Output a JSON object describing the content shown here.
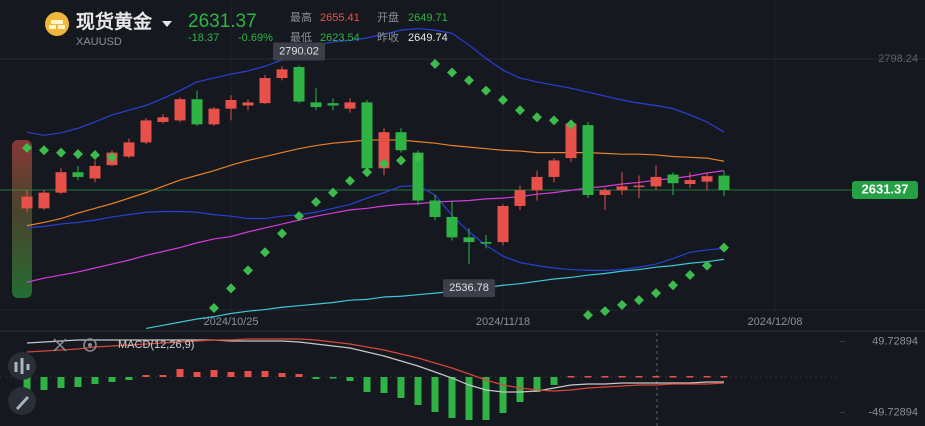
{
  "header": {
    "name": "现货黄金",
    "symbol": "XAUUSD",
    "price": "2631.37",
    "change": "-18.37",
    "change_pct": "-0.69%",
    "stats": [
      [
        "最高",
        "2655.41"
      ],
      [
        "开盘",
        "2649.71"
      ],
      [
        "最低",
        "2623.54"
      ],
      [
        "昨收",
        "2649.74"
      ]
    ]
  },
  "chart_data": [
    {
      "type": "candlestick",
      "categories": [
        null,
        null,
        null,
        null,
        null,
        null,
        null,
        null,
        null,
        null,
        null,
        null,
        "2024/10/25",
        null,
        null,
        null,
        null,
        null,
        null,
        null,
        null,
        null,
        null,
        null,
        null,
        null,
        null,
        null,
        "2024/11/18",
        null,
        null,
        null,
        null,
        null,
        null,
        null,
        null,
        null,
        null,
        null,
        null,
        null,
        null,
        null,
        "2024/12/08"
      ],
      "open": [
        2608,
        2608,
        2628,
        2654,
        2646,
        2663,
        2674,
        2692,
        2718,
        2720,
        2747,
        2715,
        2735,
        2739,
        2742,
        2774,
        2788,
        2743,
        2742,
        2735,
        2743,
        2659,
        2705,
        2679,
        2618,
        2597,
        2571,
        2565,
        2565,
        2611,
        2631,
        2648,
        2672,
        2714,
        2625,
        2631,
        2635,
        2636,
        2651,
        2639,
        2642,
        2649.71,
        null,
        null,
        null
      ],
      "high": [
        2631,
        2631,
        2659,
        2662,
        2669,
        2682,
        2697,
        2723,
        2728,
        2749,
        2758,
        2737,
        2752,
        2747,
        2778,
        2789,
        2790.02,
        2761,
        2748,
        2748,
        2746,
        2710,
        2710,
        2682,
        2625,
        2618,
        2583,
        2574,
        2613,
        2637,
        2656,
        2672,
        2720,
        2718,
        2634,
        2654,
        2650,
        2663,
        2654,
        2654,
        2654,
        2655.41,
        null,
        null,
        null
      ],
      "low": [
        2603,
        2606,
        2626,
        2644,
        2641,
        2662,
        2672,
        2690,
        2716,
        2718,
        2713,
        2713,
        2720,
        2733,
        2741,
        2771,
        2742,
        2733,
        2733,
        2730,
        2654,
        2650,
        2679,
        2612,
        2593,
        2567,
        2536.78,
        2557,
        2561,
        2606,
        2618,
        2641,
        2667,
        2621,
        2606,
        2625,
        2621,
        2631,
        2625,
        2634,
        2631,
        2623.54,
        null,
        null,
        null
      ],
      "close": [
        2623,
        2628,
        2654,
        2648,
        2662,
        2679,
        2692,
        2720,
        2724,
        2747,
        2715,
        2735,
        2746,
        2743,
        2774,
        2785,
        2744,
        2737,
        2739,
        2743,
        2659,
        2705,
        2682,
        2618,
        2597,
        2571,
        2565,
        2563,
        2611,
        2631,
        2648,
        2669,
        2716,
        2625,
        2631,
        2636,
        2637,
        2648,
        2640,
        2644,
        2649,
        2631.37,
        null,
        null,
        null
      ],
      "up_color": "#e8514a",
      "down_color": "#2fb344",
      "ylim": [
        2453,
        2873.4
      ],
      "yticks": [
        2798.24
      ],
      "current_price": 2631.37,
      "current_color": "#26a044",
      "series": [
        {
          "type": "line",
          "color": "#2a3fd6",
          "values": [
            2705,
            2701,
            2704,
            2710,
            2718,
            2727,
            2733,
            2739,
            2748,
            2758,
            2769,
            2774,
            2779,
            2783,
            2789,
            2797,
            2807,
            2816,
            2820,
            2822,
            2825,
            2830,
            2835,
            2837,
            2835,
            2831,
            2816,
            2799,
            2784,
            2774,
            2769,
            2765,
            2761,
            2756,
            2751,
            2746,
            2742,
            2739,
            2735,
            2727,
            2718,
            2705,
            null,
            null,
            null
          ]
        },
        {
          "type": "line",
          "color": "#e8822a",
          "values": [
            2586,
            2590,
            2595,
            2602,
            2608,
            2614,
            2621,
            2628,
            2636,
            2644,
            2650,
            2656,
            2663,
            2669,
            2674,
            2679,
            2684,
            2688,
            2691,
            2693,
            2695,
            2695,
            2695,
            2693,
            2691,
            2688,
            2686,
            2684,
            2682,
            2681,
            2679,
            2679,
            2679,
            2679,
            2678,
            2677,
            2677,
            2676,
            2674,
            2673,
            2672,
            2668,
            null,
            null,
            null
          ]
        },
        {
          "type": "line",
          "color": "#2a3fd6",
          "values": [
            2583,
            2585,
            2588,
            2590,
            2593,
            2597,
            2600,
            2603,
            2604,
            2604,
            2603,
            2600,
            2598,
            2595,
            2595,
            2598,
            2600,
            2603,
            2608,
            2613,
            2621,
            2628,
            2636,
            2637,
            2625,
            2599,
            2578,
            2561,
            2547,
            2539,
            2535,
            2532,
            2530,
            2529,
            2529,
            2530,
            2533,
            2537,
            2544,
            2552,
            2555,
            2557,
            null,
            null,
            null
          ]
        },
        {
          "type": "line",
          "color": "#d63adf",
          "values": [
            2514,
            2519,
            2523,
            2527,
            2532,
            2537,
            2542,
            2548,
            2553,
            2558,
            2564,
            2569,
            2572,
            2578,
            2583,
            2588,
            2593,
            2598,
            2602,
            2606,
            2608,
            2611,
            2613,
            2614,
            2616,
            2617,
            2618,
            2620,
            2621,
            2623,
            2626,
            2628,
            2631,
            2634,
            2636,
            2639,
            2641,
            2644,
            2646,
            2649,
            2653,
            2656,
            null,
            null,
            null
          ]
        },
        {
          "type": "line",
          "color": "#3cc8d8",
          "values": [
            null,
            null,
            null,
            null,
            null,
            null,
            null,
            2455,
            2459,
            2463,
            2467,
            2470,
            2474,
            2477,
            2479,
            2482,
            2484,
            2486,
            2488,
            2491,
            2492,
            2495,
            2496,
            2498,
            2500,
            2502,
            2505,
            2507,
            2510,
            2512,
            2515,
            2518,
            2520,
            2523,
            2525,
            2528,
            2530,
            2533,
            2535,
            2538,
            2540,
            2543,
            null,
            null,
            null
          ]
        },
        {
          "type": "scatter",
          "color": "#3dbb4c",
          "values": [
            2685,
            2682,
            2679,
            2677,
            2676,
            2673,
            null,
            null,
            null,
            null,
            null,
            2481,
            2506,
            2529,
            2552,
            2576,
            2598,
            2616,
            2628,
            2643,
            2654,
            2665,
            2669,
            2673,
            2792,
            2781,
            2771,
            2758,
            2746,
            2733,
            2724,
            2720,
            2715,
            2472,
            2477,
            2485,
            2491,
            2500,
            2510,
            2523,
            2535,
            2558,
            null,
            null,
            null
          ]
        }
      ]
    },
    {
      "type": "macd",
      "title": "MACD(12,26,9)",
      "ylim": [
        -68.6,
        61.6
      ],
      "yticks": [
        49.72894,
        -49.72894
      ],
      "series": [
        {
          "type": "bar",
          "up_color": "#e8514a",
          "down_color": "#2fb344",
          "values": [
            -18.2,
            -18.2,
            -15.4,
            -14,
            -9.8,
            -7,
            -4.2,
            2.8,
            2.8,
            11.2,
            7,
            9.8,
            7,
            8.4,
            8.4,
            5.6,
            4.2,
            -2.8,
            -1.4,
            -5.6,
            -21,
            -22.4,
            -29.4,
            -39.2,
            -49,
            -57.4,
            -60.2,
            -60.2,
            -50.4,
            -35,
            -21,
            -11.2,
            1.4,
            1.4,
            1.4,
            1.4,
            1.4,
            1.4,
            1.4,
            1.4,
            1.4,
            1.4,
            null,
            null,
            null
          ]
        },
        {
          "type": "line",
          "color": "#c8c8c8",
          "values": [
            47.6,
            49,
            50.4,
            51.8,
            51.8,
            51.8,
            51.8,
            51.8,
            51.8,
            51.8,
            51.8,
            51.8,
            50.4,
            50.4,
            50.4,
            50.4,
            49,
            46.2,
            43.4,
            40.6,
            35,
            29.4,
            22.4,
            15.4,
            7,
            -1.4,
            -11.2,
            -18.2,
            -21,
            -21,
            -19.6,
            -15.4,
            -11.2,
            -9.8,
            -9.8,
            -8.4,
            -8.4,
            -8.4,
            -8.4,
            -8.4,
            -7,
            -7,
            null,
            null,
            null
          ]
        },
        {
          "type": "line",
          "color": "#d9453a",
          "values": [
            35,
            36.4,
            37.8,
            39.2,
            42,
            43.4,
            44.8,
            46.2,
            47.6,
            49,
            50.4,
            51.8,
            51.8,
            53.2,
            53.2,
            53.2,
            53.2,
            51.8,
            49,
            46.2,
            42,
            37.8,
            32.2,
            26.6,
            19.6,
            12.6,
            4.2,
            -4.2,
            -11.2,
            -15.4,
            -18.2,
            -19.6,
            -18.2,
            -15.4,
            -14,
            -12.6,
            -11.2,
            -11.2,
            -9.8,
            -9.8,
            -9.8,
            -8.4,
            null,
            null,
            null
          ]
        }
      ]
    }
  ]
}
